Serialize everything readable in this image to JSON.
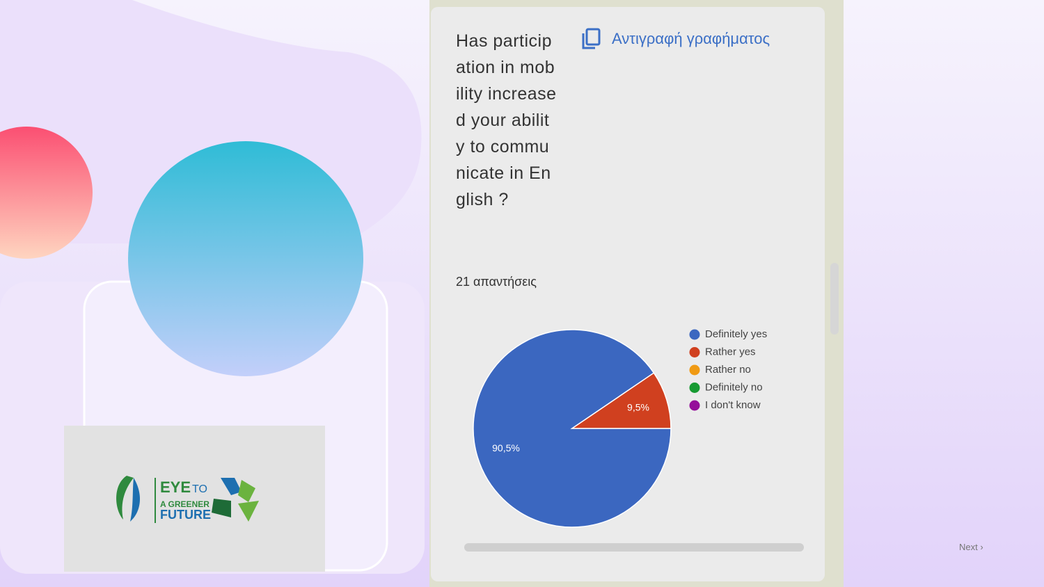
{
  "chart_data": {
    "type": "pie",
    "title": "Has participation in mobility increased your ability to communicate in English ?",
    "subtitle": "21 απαντήσεις",
    "categories": [
      "Definitely yes",
      "Rather yes",
      "Rather no",
      "Definitely no",
      "I don't know"
    ],
    "values": [
      90.5,
      9.5,
      0,
      0,
      0
    ],
    "value_labels": [
      "90,5%",
      "9,5%",
      null,
      null,
      null
    ],
    "colors": [
      "#3b67c0",
      "#d0401f",
      "#f09a13",
      "#179a32",
      "#950e9a"
    ]
  },
  "copy_button": "Αντιγραφή γραφήματος",
  "logo": {
    "line1": "EYE",
    "line1b": "TO",
    "line2": "A GREENER",
    "line3": "FUTURE"
  },
  "nav": {
    "next": "Next ›"
  }
}
